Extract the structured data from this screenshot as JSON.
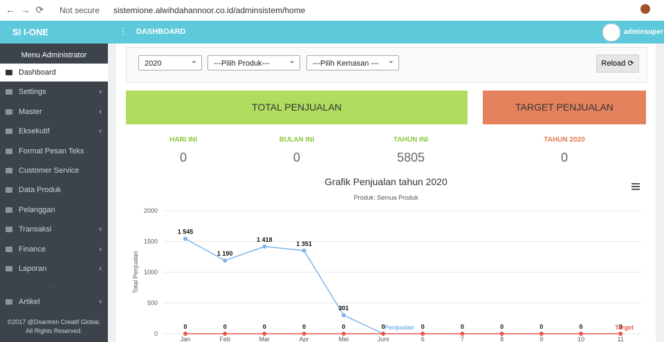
{
  "browser": {
    "security": "Not secure",
    "url": "sistemione.alwihdahannoor.co.id/adminsistem/home"
  },
  "header": {
    "brand": "SI I-ONE",
    "page": "DASHBOARD",
    "user": "adminsuper"
  },
  "sidebar": {
    "title": "Menu Administrator",
    "items": [
      {
        "label": "Dashboard",
        "active": true,
        "submenu": false
      },
      {
        "label": "Settings",
        "active": false,
        "submenu": true
      },
      {
        "label": "Master",
        "active": false,
        "submenu": true
      },
      {
        "label": "Eksekutif",
        "active": false,
        "submenu": true
      },
      {
        "label": "Format Pesan Teks",
        "active": false,
        "submenu": false
      },
      {
        "label": "Customer Service",
        "active": false,
        "submenu": false
      },
      {
        "label": "Data Produk",
        "active": false,
        "submenu": false
      },
      {
        "label": "Pelanggan",
        "active": false,
        "submenu": false
      },
      {
        "label": "Transaksi",
        "active": false,
        "submenu": true
      },
      {
        "label": "Finance",
        "active": false,
        "submenu": true
      },
      {
        "label": "Laporan",
        "active": false,
        "submenu": true
      },
      {
        "label": "Artikel",
        "active": false,
        "submenu": true
      }
    ],
    "footer": [
      "©2017 @Dsantren Creatif Global.",
      "All Rights Reserved."
    ]
  },
  "filters": {
    "year": "2020",
    "product": "---Pilih Produk---",
    "package": "---Pilih Kemasan ---",
    "button": "Reload"
  },
  "cards": {
    "total": "TOTAL PENJUALAN",
    "target": "TARGET PENJUALAN"
  },
  "stats": [
    {
      "label": "HARI INI",
      "value": "0"
    },
    {
      "label": "BULAN INI",
      "value": "0"
    },
    {
      "label": "TAHUN INI",
      "value": "5805"
    },
    {
      "label": "TAHUN 2020",
      "value": "0"
    }
  ],
  "chart_data": {
    "type": "line",
    "title": "Grafik Penjualan tahun 2020",
    "subtitle": "Produk: Semua Produk",
    "y_label": "Total Penjualan",
    "categories": [
      "Jan",
      "Feb",
      "Mar",
      "Apr",
      "Mei",
      "Juni",
      "6",
      "7",
      "8",
      "9",
      "10",
      "11"
    ],
    "ylim": [
      0,
      2000
    ],
    "yticks": [
      0,
      500,
      1000,
      1500,
      2000
    ],
    "grid": true,
    "series": [
      {
        "name": "Penjualan",
        "color": "#7cb5ec",
        "values": [
          1545,
          1190,
          1418,
          1351,
          301,
          0,
          null,
          null,
          null,
          null,
          null,
          null
        ],
        "value_labels": [
          "1 545",
          "1 190",
          "1 418",
          "1 351",
          "301",
          "0",
          null,
          null,
          null,
          null,
          null,
          null
        ]
      },
      {
        "name": "Target",
        "color": "#e8584f",
        "values": [
          0,
          0,
          0,
          0,
          0,
          0,
          0,
          0,
          0,
          0,
          0,
          0
        ]
      }
    ]
  }
}
